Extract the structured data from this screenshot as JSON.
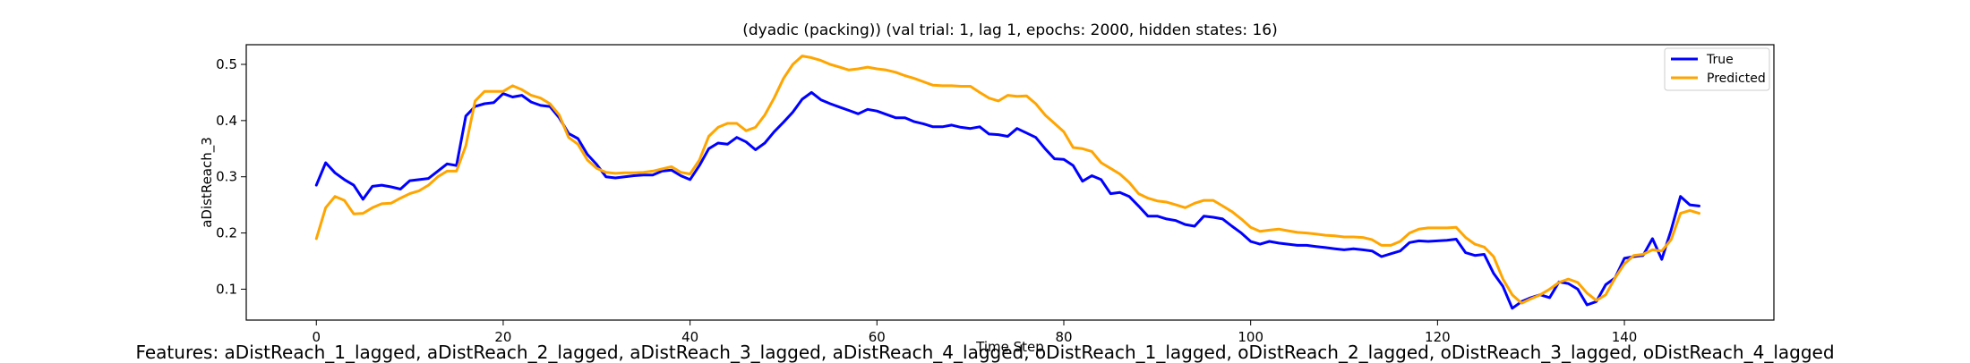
{
  "chart_data": {
    "type": "line",
    "title": "(dyadic (packing)) (val trial: 1, lag 1, epochs: 2000, hidden states: 16)",
    "xlabel": "Time Step",
    "ylabel": "aDistReach_3",
    "xlim": [
      -7.5,
      156
    ],
    "ylim": [
      0.045,
      0.535
    ],
    "xticks": [
      0,
      20,
      40,
      60,
      80,
      100,
      120,
      140
    ],
    "yticks": [
      0.1,
      0.2,
      0.3,
      0.4,
      0.5
    ],
    "grid": false,
    "legend_position": "top-right",
    "x": [
      0,
      1,
      2,
      3,
      4,
      5,
      6,
      7,
      8,
      9,
      10,
      11,
      12,
      13,
      14,
      15,
      16,
      17,
      18,
      19,
      20,
      21,
      22,
      23,
      24,
      25,
      26,
      27,
      28,
      29,
      30,
      31,
      32,
      33,
      34,
      35,
      36,
      37,
      38,
      39,
      40,
      41,
      42,
      43,
      44,
      45,
      46,
      47,
      48,
      49,
      50,
      51,
      52,
      53,
      54,
      55,
      56,
      57,
      58,
      59,
      60,
      61,
      62,
      63,
      64,
      65,
      66,
      67,
      68,
      69,
      70,
      71,
      72,
      73,
      74,
      75,
      76,
      77,
      78,
      79,
      80,
      81,
      82,
      83,
      84,
      85,
      86,
      87,
      88,
      89,
      90,
      91,
      92,
      93,
      94,
      95,
      96,
      97,
      98,
      99,
      100,
      101,
      102,
      103,
      104,
      105,
      106,
      107,
      108,
      109,
      110,
      111,
      112,
      113,
      114,
      115,
      116,
      117,
      118,
      119,
      120,
      121,
      122,
      123,
      124,
      125,
      126,
      127,
      128,
      129,
      130,
      131,
      132,
      133,
      134,
      135,
      136,
      137,
      138,
      139,
      140,
      141,
      142,
      143,
      144,
      145,
      146,
      147,
      148
    ],
    "series": [
      {
        "name": "True",
        "color": "#0000ff",
        "values": [
          0.285,
          0.325,
          0.307,
          0.295,
          0.285,
          0.26,
          0.283,
          0.285,
          0.282,
          0.278,
          0.293,
          0.295,
          0.297,
          0.31,
          0.323,
          0.32,
          0.408,
          0.425,
          0.43,
          0.432,
          0.448,
          0.442,
          0.445,
          0.433,
          0.427,
          0.425,
          0.405,
          0.377,
          0.368,
          0.34,
          0.322,
          0.3,
          0.298,
          0.3,
          0.302,
          0.303,
          0.303,
          0.31,
          0.312,
          0.302,
          0.295,
          0.32,
          0.35,
          0.36,
          0.358,
          0.37,
          0.362,
          0.348,
          0.36,
          0.38,
          0.397,
          0.415,
          0.438,
          0.45,
          0.437,
          0.43,
          0.424,
          0.418,
          0.412,
          0.42,
          0.417,
          0.411,
          0.405,
          0.405,
          0.398,
          0.394,
          0.389,
          0.389,
          0.392,
          0.388,
          0.386,
          0.389,
          0.376,
          0.375,
          0.372,
          0.386,
          0.378,
          0.37,
          0.35,
          0.332,
          0.331,
          0.32,
          0.292,
          0.302,
          0.295,
          0.27,
          0.272,
          0.265,
          0.248,
          0.23,
          0.23,
          0.225,
          0.222,
          0.215,
          0.212,
          0.23,
          0.228,
          0.225,
          0.212,
          0.2,
          0.185,
          0.18,
          0.185,
          0.182,
          0.18,
          0.178,
          0.178,
          0.176,
          0.174,
          0.172,
          0.17,
          0.172,
          0.17,
          0.168,
          0.158,
          0.163,
          0.168,
          0.183,
          0.186,
          0.185,
          0.186,
          0.187,
          0.189,
          0.165,
          0.16,
          0.162,
          0.128,
          0.105,
          0.066,
          0.078,
          0.085,
          0.09,
          0.085,
          0.113,
          0.11,
          0.1,
          0.072,
          0.078,
          0.108,
          0.12,
          0.155,
          0.158,
          0.16,
          0.19,
          0.153,
          0.205,
          0.265,
          0.25,
          0.248
        ]
      },
      {
        "name": "Predicted",
        "color": "#ffa500",
        "values": [
          0.19,
          0.245,
          0.265,
          0.258,
          0.234,
          0.235,
          0.245,
          0.252,
          0.253,
          0.262,
          0.27,
          0.275,
          0.285,
          0.3,
          0.31,
          0.31,
          0.355,
          0.435,
          0.452,
          0.452,
          0.452,
          0.462,
          0.455,
          0.445,
          0.44,
          0.43,
          0.41,
          0.37,
          0.358,
          0.33,
          0.315,
          0.308,
          0.306,
          0.307,
          0.307,
          0.308,
          0.31,
          0.314,
          0.318,
          0.308,
          0.305,
          0.33,
          0.372,
          0.388,
          0.395,
          0.395,
          0.382,
          0.388,
          0.41,
          0.44,
          0.475,
          0.5,
          0.515,
          0.512,
          0.507,
          0.5,
          0.495,
          0.49,
          0.492,
          0.495,
          0.492,
          0.49,
          0.486,
          0.48,
          0.475,
          0.469,
          0.463,
          0.462,
          0.462,
          0.461,
          0.461,
          0.45,
          0.44,
          0.435,
          0.445,
          0.443,
          0.444,
          0.43,
          0.41,
          0.395,
          0.38,
          0.352,
          0.35,
          0.345,
          0.325,
          0.315,
          0.305,
          0.29,
          0.27,
          0.262,
          0.257,
          0.255,
          0.25,
          0.245,
          0.253,
          0.258,
          0.258,
          0.248,
          0.238,
          0.225,
          0.21,
          0.203,
          0.205,
          0.207,
          0.204,
          0.201,
          0.2,
          0.198,
          0.196,
          0.195,
          0.193,
          0.193,
          0.192,
          0.188,
          0.178,
          0.178,
          0.185,
          0.2,
          0.207,
          0.209,
          0.209,
          0.209,
          0.21,
          0.192,
          0.18,
          0.175,
          0.158,
          0.118,
          0.09,
          0.075,
          0.083,
          0.09,
          0.1,
          0.112,
          0.118,
          0.112,
          0.093,
          0.08,
          0.09,
          0.12,
          0.145,
          0.16,
          0.162,
          0.17,
          0.168,
          0.188,
          0.235,
          0.24,
          0.235
        ]
      }
    ]
  },
  "caption": "Features: aDistReach_1_lagged, aDistReach_2_lagged, aDistReach_3_lagged, aDistReach_4_lagged, oDistReach_1_lagged, oDistReach_2_lagged, oDistReach_3_lagged, oDistReach_4_lagged"
}
